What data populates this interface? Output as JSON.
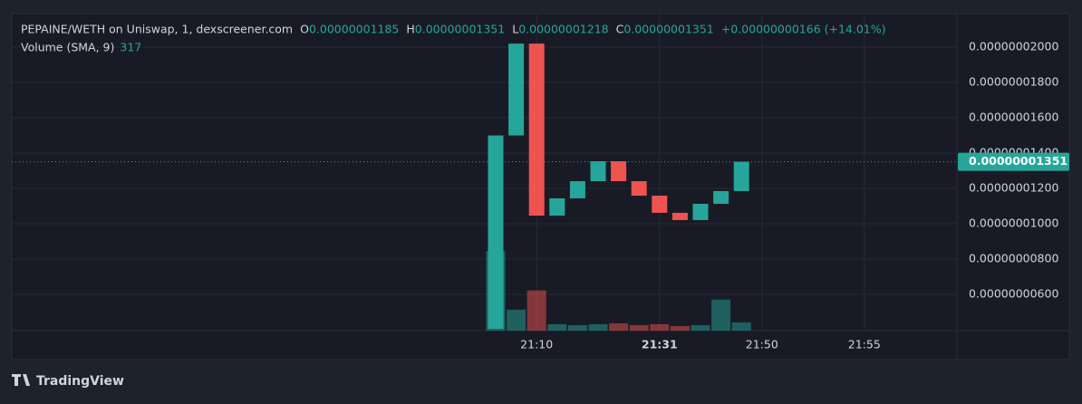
{
  "chart_data": {
    "type": "candlestick",
    "legend": {
      "symbol": "PEPAINE/WETH on Uniswap, 1, dexscreener.com",
      "o_key": "O",
      "o": "0.00000001185",
      "h_key": "H",
      "h": "0.00000001351",
      "l_key": "L",
      "l": "0.00000001218",
      "c_key": "C",
      "c": "0.00000001351",
      "change": "+0.00000000166 (+14.01%)",
      "volume_name": "Volume (SMA, 9)",
      "volume_value": "317"
    },
    "categories": [
      null,
      null,
      "21:10",
      null,
      null,
      null,
      null,
      null,
      "21:31",
      null,
      null,
      null,
      null,
      "21:50",
      null,
      null,
      null,
      null,
      "21:55"
    ],
    "open": [
      4.05e-09,
      1.5e-08,
      2.02e-08,
      1.046e-08,
      1.144e-08,
      1.241e-08,
      1.354e-08,
      1.241e-08,
      1.159e-08,
      1.062e-08,
      1.021e-08,
      1.113e-08,
      1.185e-08,
      null,
      null,
      null,
      null,
      null,
      null
    ],
    "close": [
      1.5e-08,
      2.02e-08,
      1.046e-08,
      1.144e-08,
      1.241e-08,
      1.354e-08,
      1.241e-08,
      1.159e-08,
      1.062e-08,
      1.021e-08,
      1.113e-08,
      1.185e-08,
      1.351e-08,
      null,
      null,
      null,
      null,
      null,
      null
    ],
    "volume": [
      2820,
      745,
      1426,
      227,
      194,
      227,
      259,
      194,
      227,
      162,
      194,
      1102,
      292,
      null,
      null,
      null,
      null,
      null,
      null
    ],
    "up_color": "#26a69a",
    "down_color": "#ef5350",
    "ylim": [
      3.95e-09,
      2.19e-08
    ],
    "yticks": [
      {
        "value": 2e-08,
        "label": "0.00000002000"
      },
      {
        "value": 1.8e-08,
        "label": "0.00000001800"
      },
      {
        "value": 1.6e-08,
        "label": "0.00000001600"
      },
      {
        "value": 1.4e-08,
        "label": "0.00000001400"
      },
      {
        "value": 1.2e-08,
        "label": "0.00000001200"
      },
      {
        "value": 1e-08,
        "label": "0.00000001000"
      },
      {
        "value": 8e-09,
        "label": "0.00000000800"
      },
      {
        "value": 6e-09,
        "label": "0.00000000600"
      }
    ],
    "volume_ylim": [
      0,
      9000
    ],
    "last_price": {
      "value": 1.351e-08,
      "label": "0.00000001351"
    },
    "grid": true,
    "brand": "TradingView"
  }
}
